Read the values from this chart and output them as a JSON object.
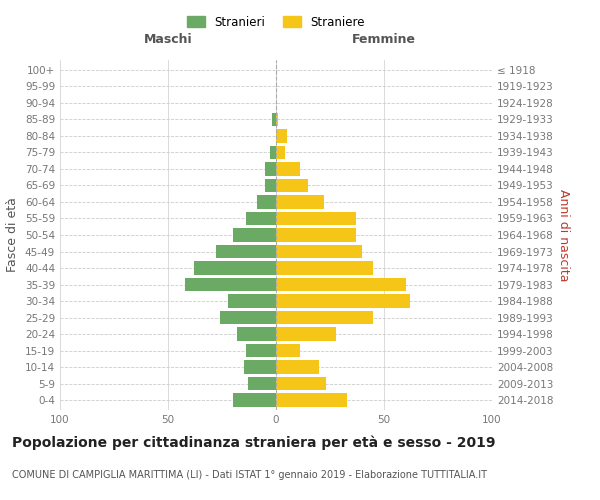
{
  "age_groups": [
    "0-4",
    "5-9",
    "10-14",
    "15-19",
    "20-24",
    "25-29",
    "30-34",
    "35-39",
    "40-44",
    "45-49",
    "50-54",
    "55-59",
    "60-64",
    "65-69",
    "70-74",
    "75-79",
    "80-84",
    "85-89",
    "90-94",
    "95-99",
    "100+"
  ],
  "birth_years": [
    "2014-2018",
    "2009-2013",
    "2004-2008",
    "1999-2003",
    "1994-1998",
    "1989-1993",
    "1984-1988",
    "1979-1983",
    "1974-1978",
    "1969-1973",
    "1964-1968",
    "1959-1963",
    "1954-1958",
    "1949-1953",
    "1944-1948",
    "1939-1943",
    "1934-1938",
    "1929-1933",
    "1924-1928",
    "1919-1923",
    "≤ 1918"
  ],
  "males": [
    20,
    13,
    15,
    14,
    18,
    26,
    22,
    42,
    38,
    28,
    20,
    14,
    9,
    5,
    5,
    3,
    0,
    2,
    0,
    0,
    0
  ],
  "females": [
    33,
    23,
    20,
    11,
    28,
    45,
    62,
    60,
    45,
    40,
    37,
    37,
    22,
    15,
    11,
    4,
    5,
    1,
    0,
    0,
    0
  ],
  "male_color": "#6aaa64",
  "female_color": "#f5c518",
  "background_color": "#ffffff",
  "grid_color": "#cccccc",
  "title": "Popolazione per cittadinanza straniera per età e sesso - 2019",
  "subtitle": "COMUNE DI CAMPIGLIA MARITTIMA (LI) - Dati ISTAT 1° gennaio 2019 - Elaborazione TUTTITALIA.IT",
  "xlabel_left": "Maschi",
  "xlabel_right": "Femmine",
  "ylabel_left": "Fasce di età",
  "ylabel_right": "Anni di nascita",
  "legend_male": "Stranieri",
  "legend_female": "Straniere",
  "xlim": 100,
  "title_fontsize": 10,
  "subtitle_fontsize": 7,
  "tick_fontsize": 7.5,
  "label_fontsize": 9
}
